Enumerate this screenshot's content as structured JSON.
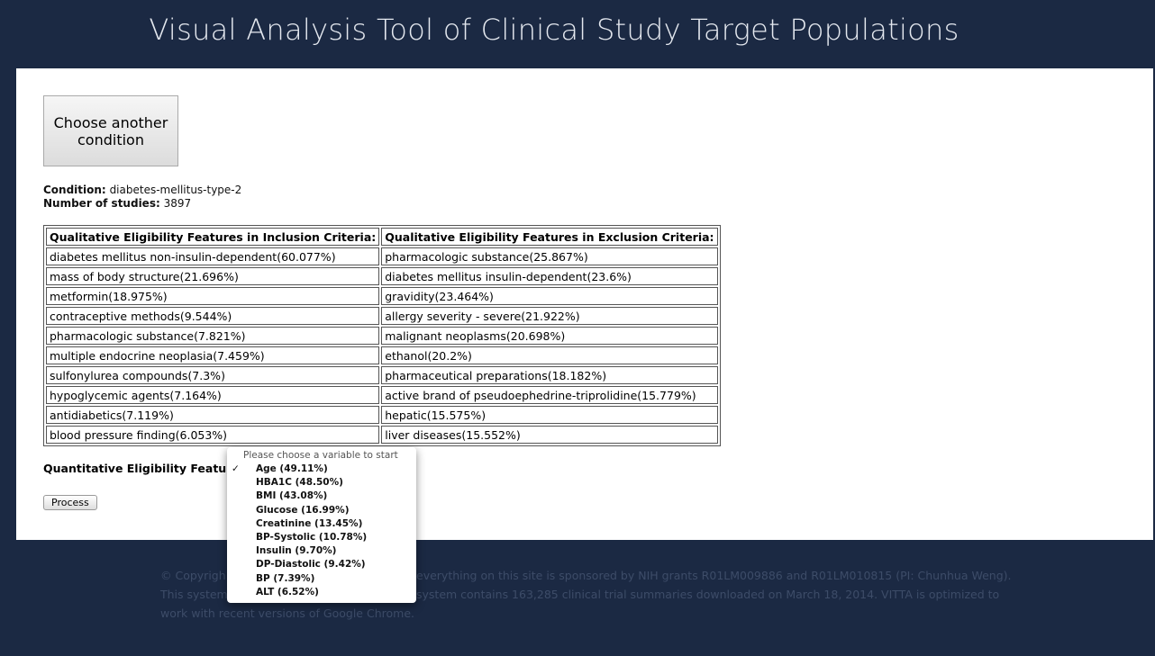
{
  "header": {
    "title": "Visual Analysis Tool of Clinical Study Target Populations"
  },
  "button": "Choose another condition",
  "condition": {
    "label": "Condition:",
    "value": "diabetes-mellitus-type-2"
  },
  "studies": {
    "label": "Number of studies:",
    "value": "3897"
  },
  "table": {
    "headers": [
      "Qualitative Eligibility Features in Inclusion Criteria:",
      "Qualitative Eligibility Features in Exclusion Criteria:"
    ],
    "rows": [
      [
        "diabetes mellitus non-insulin-dependent(60.077%)",
        "pharmacologic substance(25.867%)"
      ],
      [
        "mass of body structure(21.696%)",
        "diabetes mellitus insulin-dependent(23.6%)"
      ],
      [
        "metformin(18.975%)",
        "gravidity(23.464%)"
      ],
      [
        "contraceptive methods(9.544%)",
        "allergy severity - severe(21.922%)"
      ],
      [
        "pharmacologic substance(7.821%)",
        "malignant neoplasms(20.698%)"
      ],
      [
        "multiple endocrine neoplasia(7.459%)",
        "ethanol(20.2%)"
      ],
      [
        "sulfonylurea compounds(7.3%)",
        "pharmaceutical preparations(18.182%)"
      ],
      [
        "hypoglycemic agents(7.164%)",
        "active brand of pseudoephedrine-triprolidine(15.779%)"
      ],
      [
        "antidiabetics(7.119%)",
        "hepatic(15.575%)"
      ],
      [
        "blood pressure finding(6.053%)",
        "liver diseases(15.552%)"
      ]
    ]
  },
  "quantitative_label": "Quantitative Eligibility Features",
  "dropdown": {
    "placeholder": "Please choose a variable to start",
    "check": "✓",
    "options": [
      "Age (49.11%)",
      "HBA1C (48.50%)",
      "BMI (43.08%)",
      "Glucose (16.99%)",
      "Creatinine (13.45%)",
      "BP-Systolic (10.78%)",
      "Insulin (9.70%)",
      "DP-Diastolic (9.42%)",
      "BP (7.39%)",
      "ALT (6.52%)"
    ]
  },
  "process_button": "Process",
  "footer": {
    "lines": [
      [
        "© Copyrigh",
        "everything on this site is sponsored by NIH grants R01LM009886 and R01LM010815 (PI: Chunhua Weng)."
      ],
      [
        "This system",
        "system contains 163,285 clinical trial summaries downloaded on March 18, 2014. VITTA is optimized to"
      ],
      [
        "work with recent versions of Google Chrome."
      ]
    ]
  }
}
